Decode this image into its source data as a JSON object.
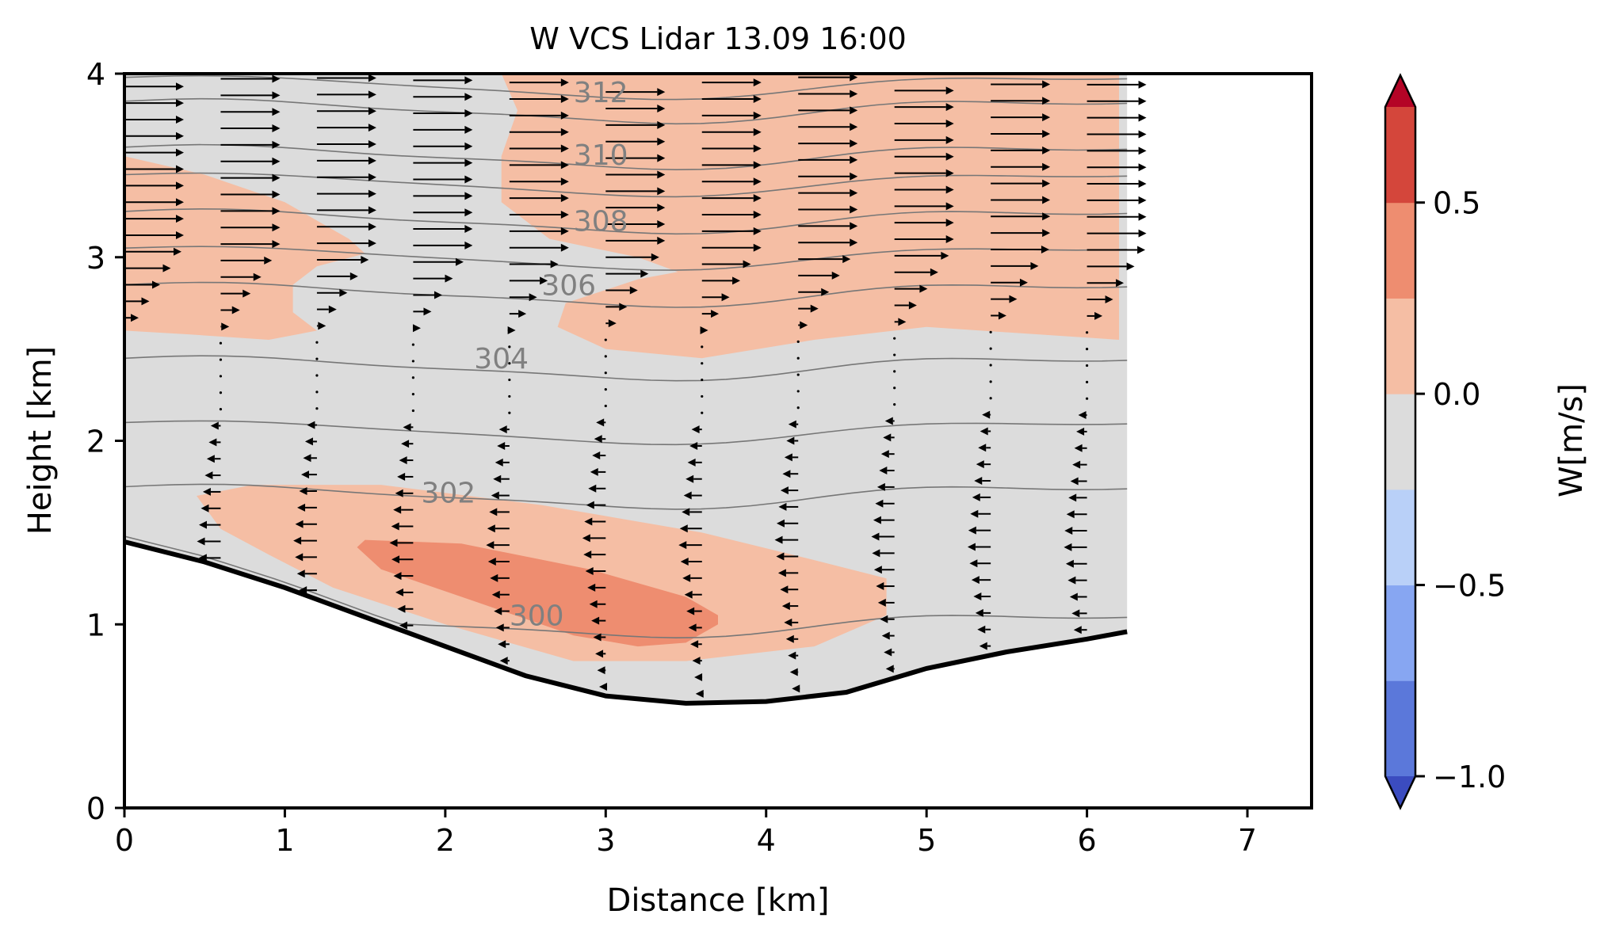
{
  "chart_data": {
    "type": "contourf",
    "title": "W VCS Lidar 13.09 16:00",
    "xlabel": "Distance [km]",
    "ylabel": "Height [km]",
    "xlim": [
      0,
      7.4
    ],
    "ylim": [
      0,
      4
    ],
    "xticks": [
      0,
      1,
      2,
      3,
      4,
      5,
      6,
      7
    ],
    "yticks": [
      0,
      1,
      2,
      3,
      4
    ],
    "colorbar": {
      "label": "W[m/s]",
      "levels": [
        -1.0,
        -0.75,
        -0.5,
        -0.25,
        0.0,
        0.25,
        0.5,
        0.75
      ],
      "colors": [
        "#5b78da",
        "#87a6f2",
        "#b9d0f8",
        "#dcdcdc",
        "#f5bea4",
        "#ee8d70",
        "#d4463b"
      ],
      "extend_low_color": "#3b4cc0",
      "extend_high_color": "#b40426",
      "ticks": [
        0.5,
        0.0,
        -0.5,
        -1.0
      ],
      "tick_labels": [
        "0.5",
        "0.0",
        "−0.5",
        "−1.0"
      ]
    },
    "terrain": {
      "x": [
        0,
        0.5,
        1.0,
        1.5,
        2.0,
        2.5,
        3.0,
        3.5,
        4.0,
        4.5,
        5.0,
        5.5,
        6.0,
        6.25
      ],
      "height": [
        1.45,
        1.34,
        1.2,
        1.04,
        0.88,
        0.72,
        0.61,
        0.57,
        0.58,
        0.63,
        0.76,
        0.85,
        0.92,
        0.96
      ]
    },
    "theta_contours": [
      {
        "value": 300,
        "label": "300"
      },
      {
        "value": 302,
        "label": "302"
      },
      {
        "value": 304,
        "label": "304"
      },
      {
        "value": 306,
        "label": "306"
      },
      {
        "value": 308,
        "label": "308"
      },
      {
        "value": 310,
        "label": "310"
      },
      {
        "value": 312,
        "label": "312"
      }
    ],
    "wind_columns_x": [
      0,
      0.6,
      1.2,
      1.8,
      2.4,
      3.0,
      3.6,
      4.2,
      4.8,
      5.4,
      6.0
    ],
    "w_regions": [
      {
        "level": "0.0 to 0.25",
        "desc": "updraft upper left"
      },
      {
        "level": "0.0 to 0.25",
        "desc": "updraft upper right"
      },
      {
        "level": "0.0 to 0.25",
        "desc": "updraft lower slope"
      },
      {
        "level": "0.25 to 0.5",
        "desc": "updraft core lower slope"
      }
    ]
  }
}
